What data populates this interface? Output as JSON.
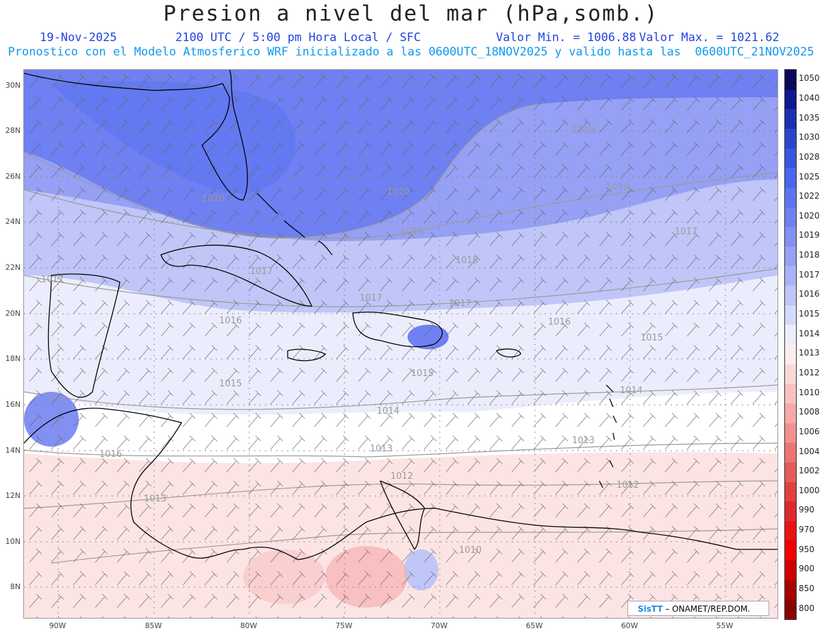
{
  "header": {
    "title": "Presion a nivel del mar (hPa,somb.)",
    "date": "19-Nov-2025",
    "time": "2100 UTC / 5:00 pm Hora Local / SFC",
    "min_label": "Valor Min. = 1006.88",
    "max_label": "Valor Max. = 1021.62",
    "forecast_note": "Pronostico con el Modelo Atmosferico WRF inicializado a las 0600UTC_18NOV2025 y valido hasta las  0600UTC_21NOV2025"
  },
  "axes": {
    "lat_labels": [
      "30N",
      "28N",
      "26N",
      "24N",
      "22N",
      "20N",
      "18N",
      "16N",
      "14N",
      "12N",
      "10N",
      "8N"
    ],
    "lon_labels": [
      "90W",
      "85W",
      "80W",
      "75W",
      "70W",
      "65W",
      "60W",
      "55W"
    ]
  },
  "isobars": [
    {
      "label": "1020"
    },
    {
      "label": "1020"
    },
    {
      "label": "1019"
    },
    {
      "label": "1019"
    },
    {
      "label": "1018"
    },
    {
      "label": "1018"
    },
    {
      "label": "1017"
    },
    {
      "label": "1017"
    },
    {
      "label": "1017"
    },
    {
      "label": "1017"
    },
    {
      "label": "1016"
    },
    {
      "label": "1016"
    },
    {
      "label": "1015"
    },
    {
      "label": "1015"
    },
    {
      "label": "1015"
    },
    {
      "label": "1014"
    },
    {
      "label": "1014"
    },
    {
      "label": "1013"
    },
    {
      "label": "1013"
    },
    {
      "label": "1013"
    },
    {
      "label": "1012"
    },
    {
      "label": "1012"
    },
    {
      "label": "1010"
    },
    {
      "label": "1016"
    },
    {
      "label": "1017"
    }
  ],
  "colorbar": {
    "labels": [
      "1050",
      "1040",
      "1035",
      "1030",
      "1028",
      "1025",
      "1022",
      "1020",
      "1019",
      "1018",
      "1017",
      "1016",
      "1015",
      "1014",
      "1013",
      "1012",
      "1010",
      "1008",
      "1006",
      "1004",
      "1002",
      "1000",
      "990",
      "970",
      "950",
      "900",
      "850",
      "800"
    ],
    "colors": [
      "#0a0a5a",
      "#0d1a8c",
      "#1a2fb0",
      "#2a44cc",
      "#3a55dd",
      "#4a66ee",
      "#5c74f0",
      "#6e80f2",
      "#8290f2",
      "#96a0f4",
      "#aab2f6",
      "#c0c6f8",
      "#d6daf9",
      "#ecedfc",
      "#fdecec",
      "#fbd8d8",
      "#f8c2c2",
      "#f5a9a9",
      "#f19090",
      "#ec7474",
      "#e65a5a",
      "#e04040",
      "#dd2a2a",
      "#e61414",
      "#f00000",
      "#cc0000",
      "#aa0000",
      "#880000"
    ]
  },
  "credit": {
    "logo": "SisTT",
    "text": " – ONAMET/REP.DOM."
  }
}
